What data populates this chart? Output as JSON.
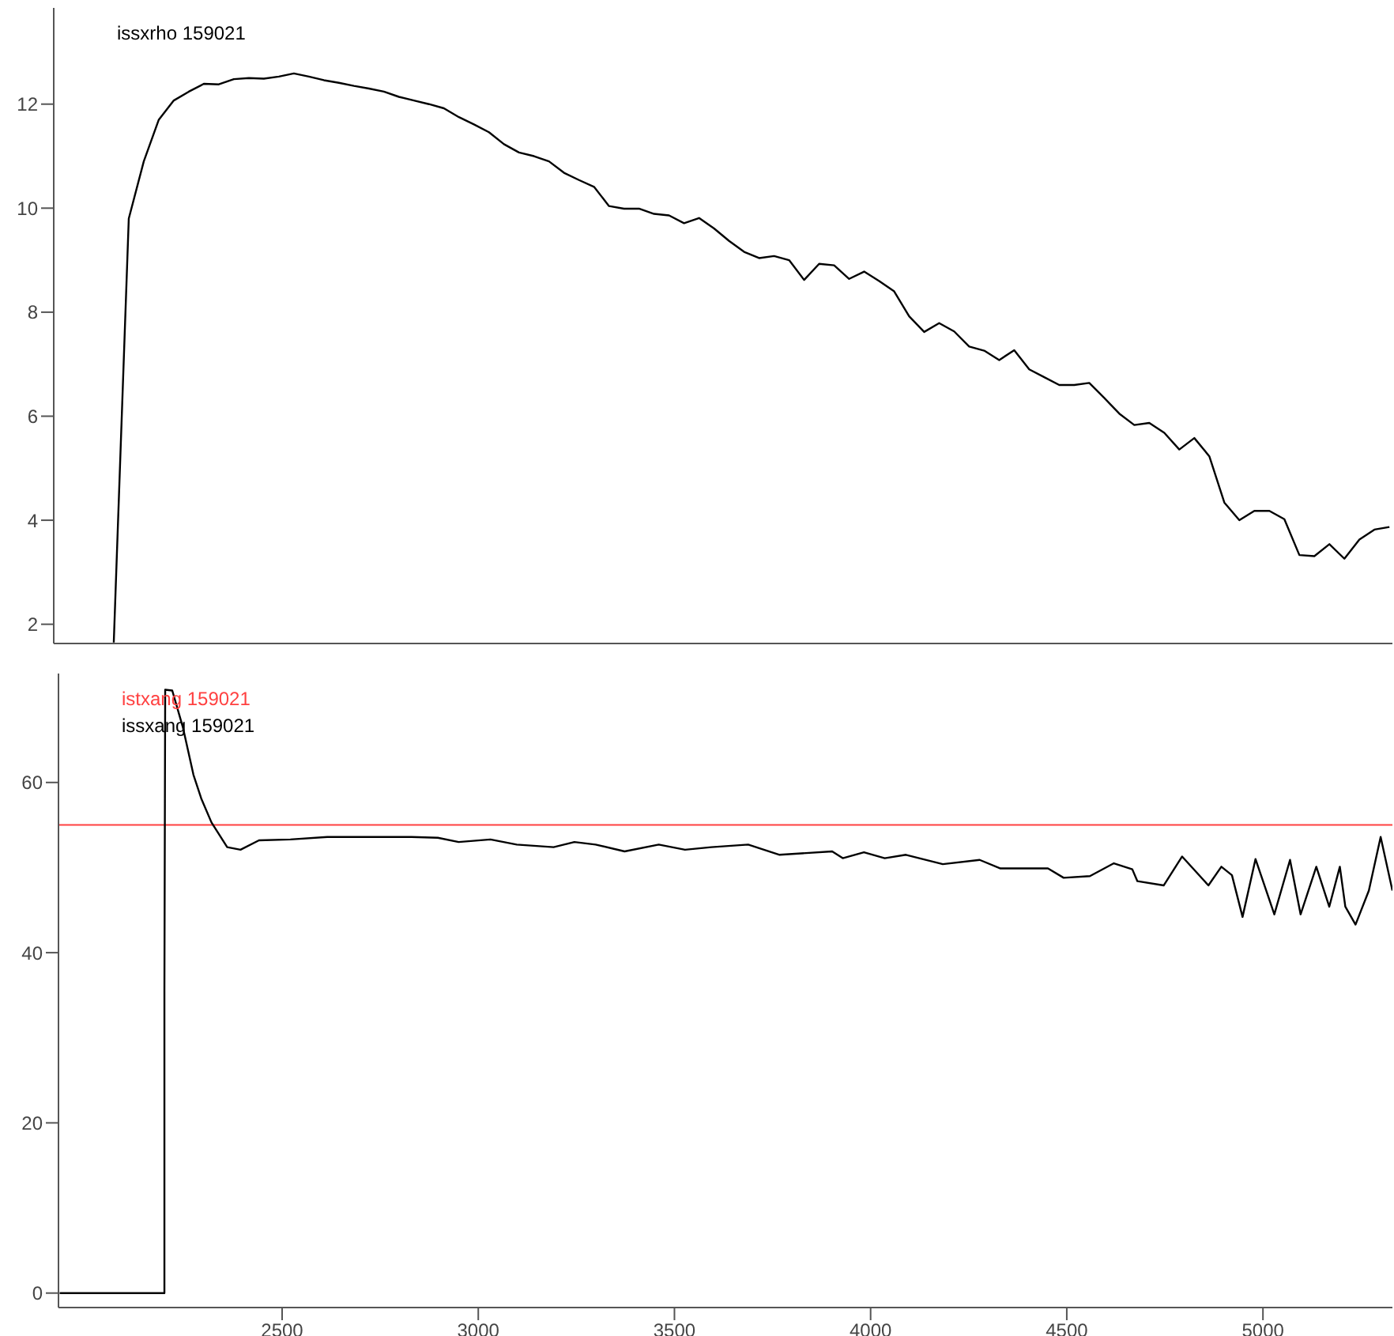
{
  "chart_data": [
    {
      "type": "line",
      "categories": [
        null,
        null,
        null,
        null,
        null,
        null,
        null,
        null,
        null,
        null,
        null,
        null,
        null,
        null,
        null,
        null,
        null,
        null,
        null,
        null,
        null,
        null,
        null,
        null,
        null,
        null,
        null,
        null,
        null,
        null,
        null,
        null,
        null,
        null,
        null,
        null,
        null,
        null,
        null,
        null,
        null,
        null,
        null,
        null,
        null,
        null,
        null,
        null,
        null,
        null,
        null,
        null,
        null,
        null,
        null,
        null,
        null,
        null,
        null,
        null,
        null,
        null,
        null,
        null,
        null,
        null,
        null,
        null,
        null,
        null,
        null,
        null,
        null,
        null,
        null,
        null,
        null,
        null,
        null,
        null,
        null,
        null,
        null,
        null,
        null,
        null,
        null,
        null,
        null,
        null
      ],
      "ylim": [
        1.63,
        13.85
      ],
      "yticks": [
        2,
        4,
        6,
        8,
        10,
        12
      ],
      "tick_labels": "y",
      "marker": "none",
      "series": [
        {
          "name": "issxrho 159021",
          "color": "#000000",
          "values": [
            null,
            null,
            null,
            null,
            1.65,
            9.8,
            10.9,
            11.7,
            12.07,
            12.24,
            12.39,
            12.38,
            12.48,
            12.5,
            12.49,
            12.53,
            12.59,
            12.53,
            12.46,
            12.41,
            12.35,
            12.3,
            12.24,
            12.14,
            12.07,
            12.0,
            11.92,
            11.75,
            11.61,
            11.46,
            11.23,
            11.07,
            11.0,
            10.9,
            10.68,
            10.54,
            10.41,
            10.04,
            9.99,
            9.99,
            9.89,
            9.86,
            9.71,
            9.81,
            9.61,
            9.37,
            9.16,
            9.04,
            9.08,
            9.0,
            8.62,
            8.93,
            8.9,
            8.64,
            8.78,
            8.6,
            8.4,
            7.92,
            7.62,
            7.79,
            7.63,
            7.34,
            7.26,
            7.08,
            7.27,
            6.9,
            6.75,
            6.6,
            6.6,
            6.64,
            6.35,
            6.05,
            5.83,
            5.87,
            5.68,
            5.36,
            5.58,
            5.23,
            4.34,
            4.0,
            4.18,
            4.18,
            4.02,
            3.33,
            3.31,
            3.54,
            3.26,
            3.63,
            3.82,
            3.87
          ]
        }
      ]
    },
    {
      "type": "line",
      "xlim": [
        1930,
        5330
      ],
      "xticks": [
        2500,
        3000,
        3500,
        4000,
        4500,
        5000
      ],
      "ylim": [
        -1.7,
        72.8
      ],
      "yticks": [
        0,
        20,
        40,
        60
      ],
      "marker": "none",
      "ref_lines": [
        {
          "axis": "y",
          "value": 55,
          "label": "istxang 159021",
          "color": "#ff4040"
        }
      ],
      "series": [
        {
          "name": "issxang 159021",
          "color": "#000000",
          "x": [
            1933,
            2200,
            2200,
            2202,
            2220,
            2247,
            2274,
            2294,
            2320,
            2360,
            2394,
            2441,
            2521,
            2615,
            2722,
            2830,
            2897,
            2950,
            3031,
            3098,
            3192,
            3245,
            3299,
            3373,
            3460,
            3527,
            3594,
            3688,
            3768,
            3902,
            3929,
            3983,
            4036,
            4090,
            4184,
            4278,
            4331,
            4452,
            4492,
            4559,
            4620,
            4667,
            4680,
            4747,
            4794,
            4861,
            4894,
            4921,
            4948,
            4981,
            5029,
            5069,
            5096,
            5136,
            5169,
            5196,
            5210,
            5236,
            5270,
            5300,
            5330
          ],
          "values": [
            0,
            0,
            35.5,
            70.9,
            70.8,
            66.5,
            60.9,
            58.1,
            55.3,
            52.4,
            52.1,
            53.2,
            53.3,
            53.6,
            53.6,
            53.6,
            53.5,
            53.0,
            53.3,
            52.7,
            52.4,
            53.0,
            52.7,
            51.9,
            52.7,
            52.1,
            52.4,
            52.7,
            51.5,
            51.9,
            51.1,
            51.8,
            51.1,
            51.5,
            50.4,
            50.9,
            49.9,
            49.9,
            48.8,
            49.0,
            50.5,
            49.8,
            48.4,
            47.9,
            51.3,
            47.9,
            50.1,
            49.1,
            44.2,
            51.0,
            44.5,
            50.9,
            44.5,
            50.1,
            45.4,
            50.1,
            45.4,
            43.3,
            47.3,
            53.6,
            47.3
          ]
        }
      ]
    }
  ]
}
